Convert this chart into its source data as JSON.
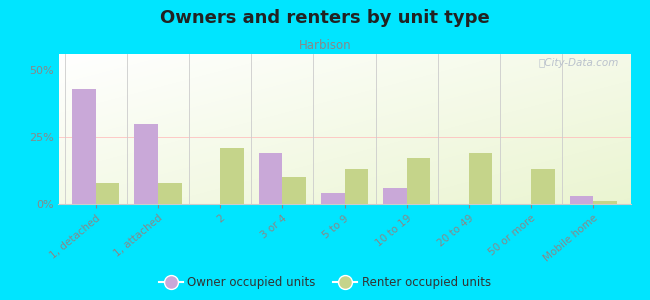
{
  "title": "Owners and renters by unit type",
  "subtitle": "Harbison",
  "categories": [
    "1, detached",
    "1, attached",
    "2",
    "3 or 4",
    "5 to 9",
    "10 to 19",
    "20 to 49",
    "50 or more",
    "Mobile home"
  ],
  "owner_values": [
    43,
    30,
    0,
    19,
    4,
    6,
    0,
    0,
    3
  ],
  "renter_values": [
    8,
    8,
    21,
    10,
    13,
    17,
    19,
    13,
    1
  ],
  "owner_color": "#c9a8d8",
  "renter_color": "#c5d48a",
  "outer_bg": "#00e5ff",
  "ylabel_ticks": [
    0,
    25,
    50
  ],
  "ylabel_labels": [
    "0%",
    "25%",
    "50%"
  ],
  "ylim": [
    0,
    56
  ],
  "legend_owner": "Owner occupied units",
  "legend_renter": "Renter occupied units",
  "watermark": "ⓘCity-Data.com"
}
